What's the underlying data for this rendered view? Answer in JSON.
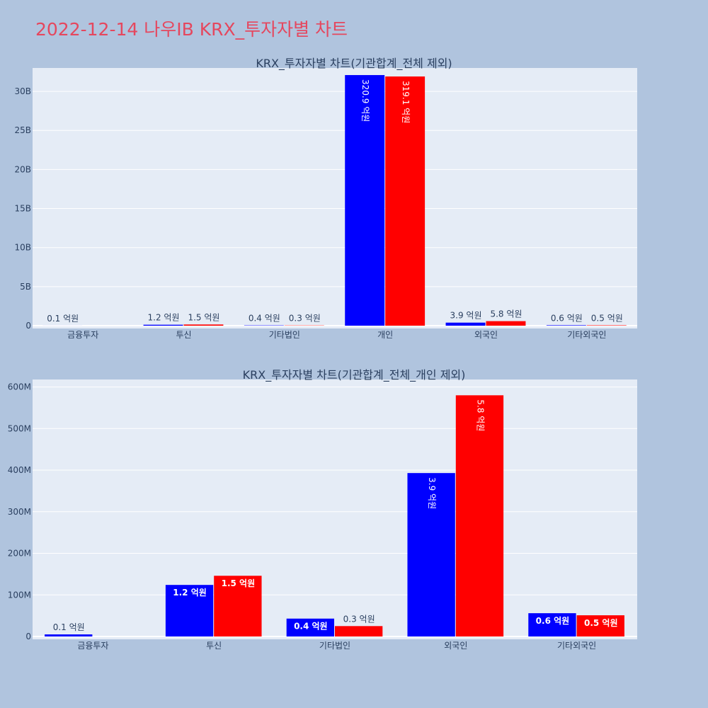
{
  "page": {
    "title": "2022-12-14 나우IB KRX_투자자별 차트",
    "title_color": "#e5475e",
    "background": "#b0c4de",
    "plot_background": "#e5ecf6"
  },
  "chart_data": [
    {
      "type": "bar",
      "title": "KRX_투자자별 차트(기관합계_전체 제외)",
      "categories": [
        "금융투자",
        "투신",
        "기타법인",
        "개인",
        "외국인",
        "기타외국인"
      ],
      "series": [
        {
          "color": "#0000ff",
          "values": [
            5000000,
            120000000,
            40000000,
            32090000000,
            390000000,
            60000000
          ],
          "labels": [
            "0.1 억원",
            "1.2 억원",
            "0.4 억원",
            "320.9 억원",
            "3.9 억원",
            "0.6 억원"
          ]
        },
        {
          "color": "#ff0000",
          "values": [
            0,
            150000000,
            30000000,
            31910000000,
            580000000,
            50000000
          ],
          "labels": [
            "",
            "1.5 억원",
            "0.3 억원",
            "319.1 억원",
            "5.8 억원",
            "0.5 억원"
          ]
        }
      ],
      "ylim": [
        0,
        33000000000
      ],
      "yticks": [
        0,
        5000000000,
        10000000000,
        15000000000,
        20000000000,
        25000000000,
        30000000000
      ],
      "ytick_labels": [
        "0",
        "5B",
        "10B",
        "15B",
        "20B",
        "25B",
        "30B"
      ],
      "grid": true,
      "xlabel": "",
      "ylabel": ""
    },
    {
      "type": "bar",
      "title": "KRX_투자자별 차트(기관합계_전체_개인 제외)",
      "categories": [
        "금융투자",
        "투신",
        "기타법인",
        "외국인",
        "기타외국인"
      ],
      "series": [
        {
          "color": "#0000ff",
          "values": [
            5000000,
            124000000,
            43000000,
            393000000,
            56000000
          ],
          "labels": [
            "0.1 억원",
            "1.2 억원",
            "0.4 억원",
            "3.9 억원",
            "0.6 억원"
          ]
        },
        {
          "color": "#ff0000",
          "values": [
            0,
            146000000,
            25000000,
            580000000,
            51000000
          ],
          "labels": [
            "",
            "1.5 억원",
            "0.3 억원",
            "5.8 억원",
            "0.5 억원"
          ]
        }
      ],
      "ylim": [
        0,
        618000000
      ],
      "yticks": [
        0,
        100000000,
        200000000,
        300000000,
        400000000,
        500000000,
        600000000
      ],
      "ytick_labels": [
        "0",
        "100M",
        "200M",
        "300M",
        "400M",
        "500M",
        "600M"
      ],
      "grid": true,
      "xlabel": "",
      "ylabel": ""
    }
  ]
}
